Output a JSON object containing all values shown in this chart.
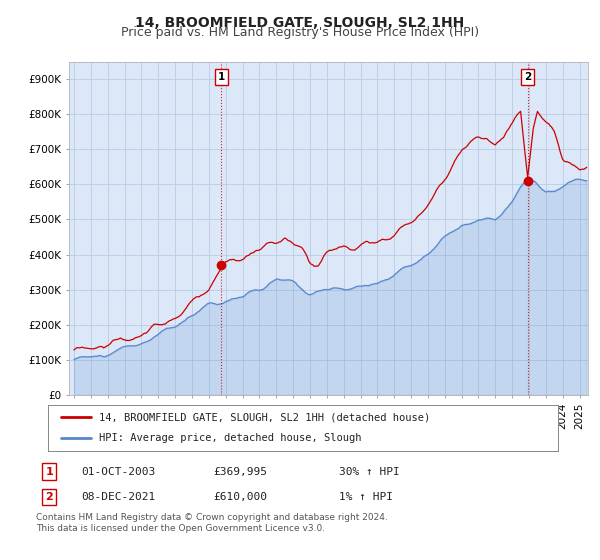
{
  "title": "14, BROOMFIELD GATE, SLOUGH, SL2 1HH",
  "subtitle": "Price paid vs. HM Land Registry's House Price Index (HPI)",
  "ylim": [
    0,
    950000
  ],
  "yticks": [
    0,
    100000,
    200000,
    300000,
    400000,
    500000,
    600000,
    700000,
    800000,
    900000
  ],
  "ytick_labels": [
    "£0",
    "£100K",
    "£200K",
    "£300K",
    "£400K",
    "£500K",
    "£600K",
    "£700K",
    "£800K",
    "£900K"
  ],
  "xlim_start": 1994.7,
  "xlim_end": 2025.5,
  "background_color": "#ffffff",
  "plot_bg_color": "#dce8f8",
  "grid_color": "#b8cce4",
  "line1_color": "#cc0000",
  "line2_color": "#5588cc",
  "sale1_x": 2003.75,
  "sale1_y": 369995,
  "sale2_x": 2021.917,
  "sale2_y": 610000,
  "legend_line1": "14, BROOMFIELD GATE, SLOUGH, SL2 1HH (detached house)",
  "legend_line2": "HPI: Average price, detached house, Slough",
  "table_row1_badge": "1",
  "table_row1_date": "01-OCT-2003",
  "table_row1_price": "£369,995",
  "table_row1_hpi": "30% ↑ HPI",
  "table_row2_badge": "2",
  "table_row2_date": "08-DEC-2021",
  "table_row2_price": "£610,000",
  "table_row2_hpi": "1% ↑ HPI",
  "footnote1": "Contains HM Land Registry data © Crown copyright and database right 2024.",
  "footnote2": "This data is licensed under the Open Government Licence v3.0.",
  "title_fontsize": 10,
  "subtitle_fontsize": 9,
  "tick_fontsize": 7.5,
  "badge_color": "#cc0000"
}
